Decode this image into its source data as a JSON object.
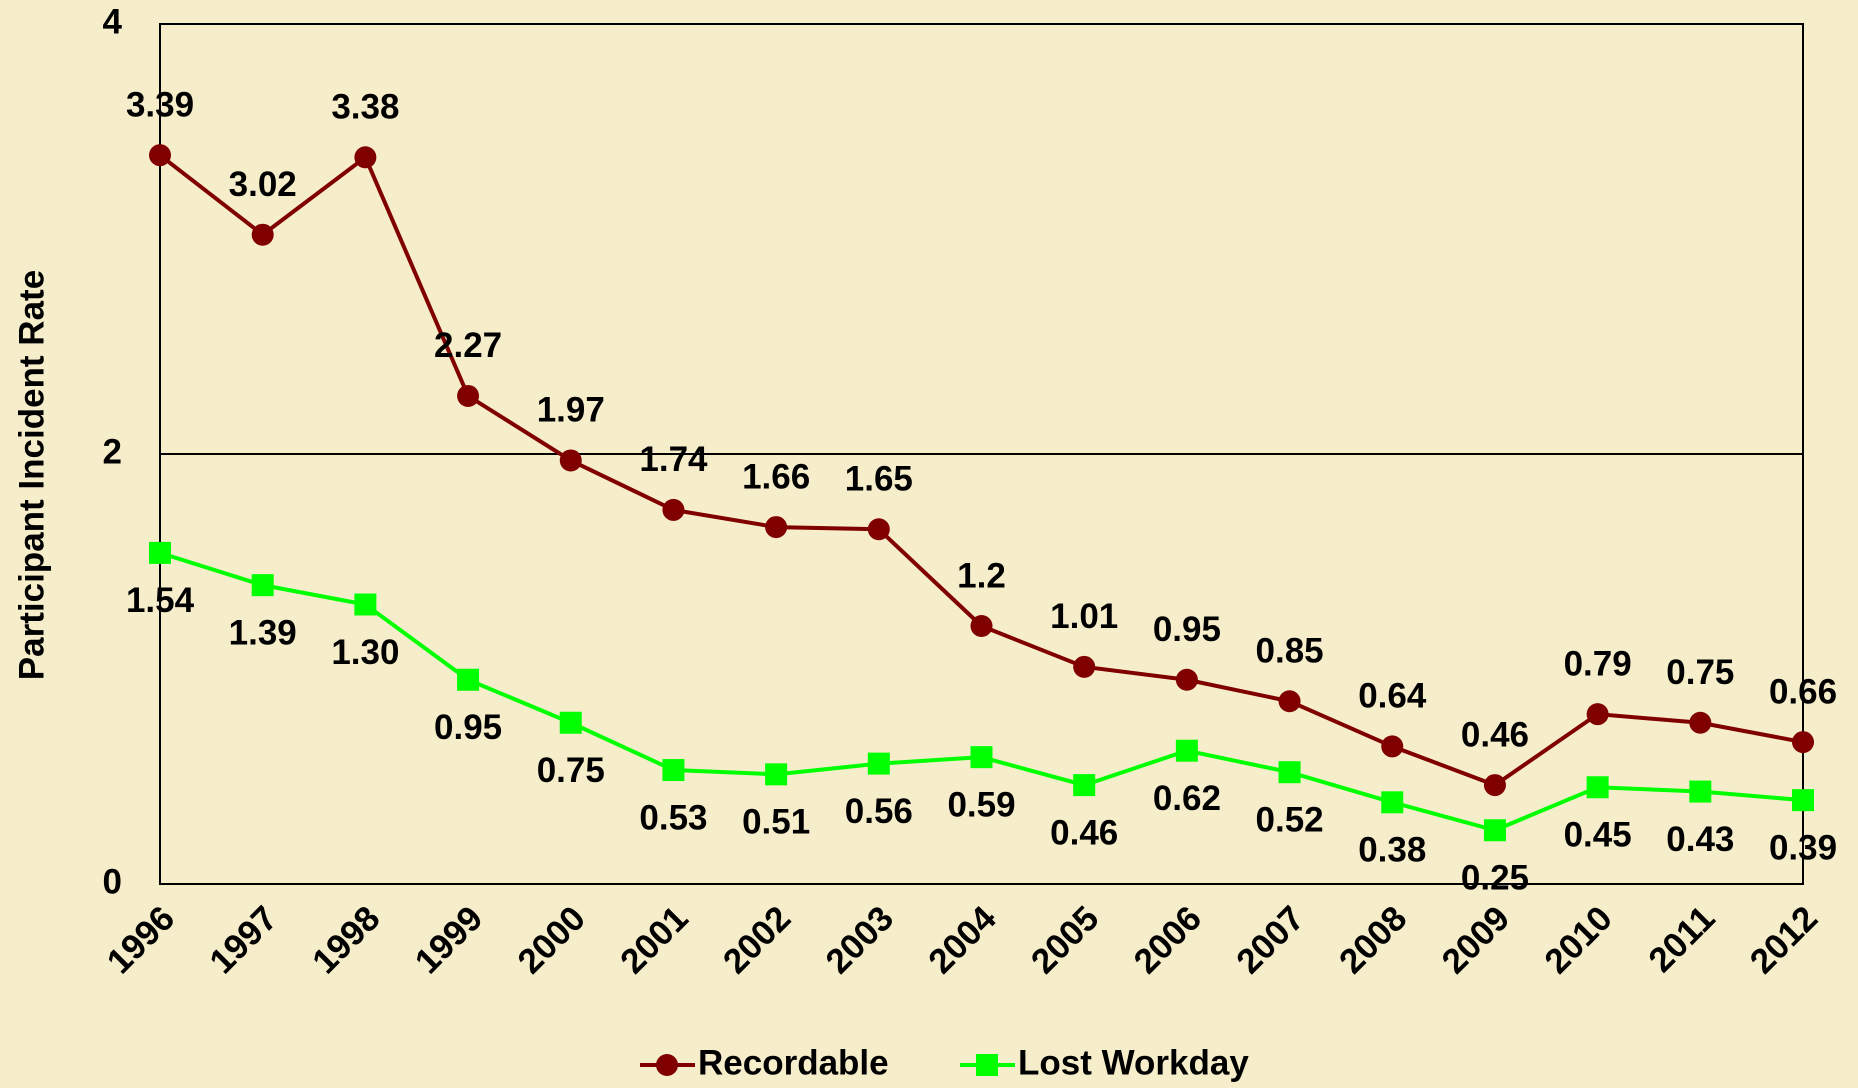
{
  "chart_data": {
    "type": "line",
    "ylabel": "Participant Incident Rate",
    "categories": [
      "1996",
      "1997",
      "1998",
      "1999",
      "2000",
      "2001",
      "2002",
      "2003",
      "2004",
      "2005",
      "2006",
      "2007",
      "2008",
      "2009",
      "2010",
      "2011",
      "2012"
    ],
    "series": [
      {
        "name": "Recordable",
        "color": "#800000",
        "marker": "circle",
        "values": [
          3.39,
          3.02,
          3.38,
          2.27,
          1.97,
          1.74,
          1.66,
          1.65,
          1.2,
          1.01,
          0.95,
          0.85,
          0.64,
          0.46,
          0.79,
          0.75,
          0.66
        ]
      },
      {
        "name": "Lost Workday",
        "color": "#00ff00",
        "marker": "square",
        "values": [
          1.54,
          1.39,
          1.3,
          0.95,
          0.75,
          0.53,
          0.51,
          0.56,
          0.59,
          0.46,
          0.62,
          0.52,
          0.38,
          0.25,
          0.45,
          0.43,
          0.39
        ],
        "value_labels": [
          "1.54",
          "1.39",
          "1.30",
          "0.95",
          "0.75",
          "0.53",
          "0.51",
          "0.56",
          "0.59",
          "0.46",
          "0.62",
          "0.52",
          "0.38",
          "0.25",
          "0.45",
          "0.43",
          "0.39"
        ]
      }
    ],
    "ylim": [
      0,
      4
    ],
    "yticks": [
      0,
      2,
      4
    ],
    "grid": true
  }
}
